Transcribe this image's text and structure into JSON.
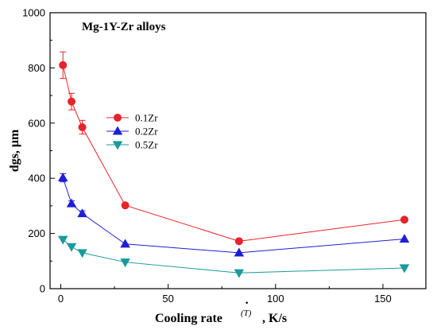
{
  "chart_data": {
    "type": "line",
    "annotation": "Mg-1Y-Zr alloys",
    "xlabel": "Cooling rate",
    "xlabel_superscript": "(T)",
    "xlabel_dot": "·",
    "xlabel_unit": ", K/s",
    "ylabel": "dgs, μm",
    "xlim": [
      -5,
      170
    ],
    "ylim": [
      0,
      1000
    ],
    "xticks": [
      0,
      50,
      100,
      150
    ],
    "yticks": [
      0,
      200,
      400,
      600,
      800,
      1000
    ],
    "legend_position": "upper-left-center",
    "series": [
      {
        "name": "0.1Zr",
        "color": "#e8232a",
        "marker": "circle",
        "x": [
          1,
          5,
          10,
          30,
          83,
          160
        ],
        "y": [
          810,
          678,
          585,
          302,
          172,
          250
        ],
        "error": [
          48,
          30,
          25,
          0,
          0,
          0
        ]
      },
      {
        "name": "0.2Zr",
        "color": "#1e1ed6",
        "marker": "triangle-up",
        "x": [
          1,
          5,
          10,
          30,
          83,
          160
        ],
        "y": [
          402,
          308,
          272,
          162,
          130,
          180
        ],
        "error": [
          15,
          10,
          10,
          0,
          0,
          0
        ]
      },
      {
        "name": "0.5Zr",
        "color": "#1a9a9a",
        "marker": "triangle-down",
        "x": [
          1,
          5,
          10,
          30,
          83,
          160
        ],
        "y": [
          178,
          152,
          130,
          96,
          57,
          75
        ],
        "error": [
          0,
          0,
          0,
          0,
          0,
          0
        ]
      }
    ]
  }
}
